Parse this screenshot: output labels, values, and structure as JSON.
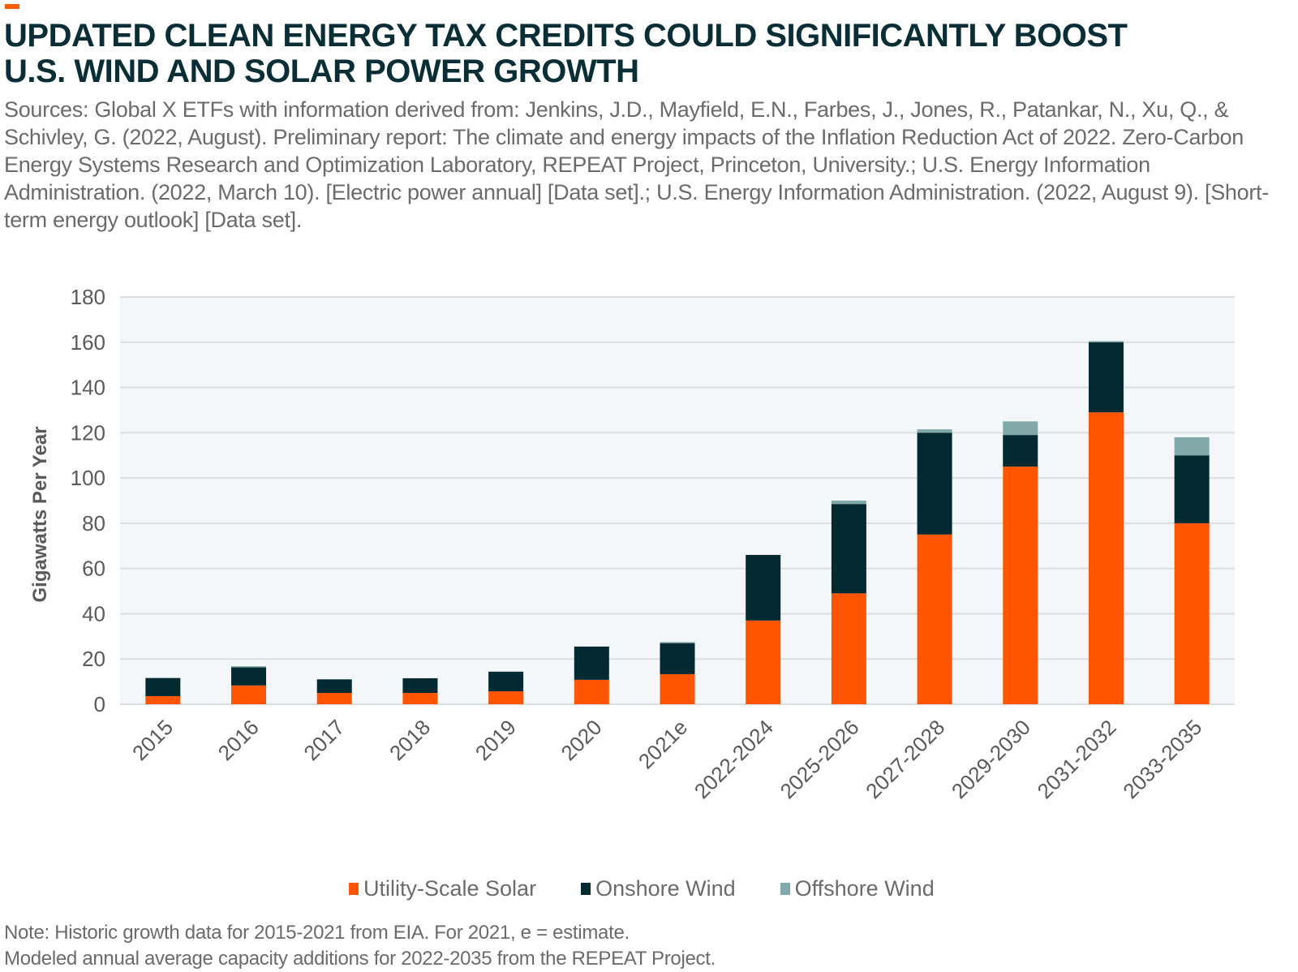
{
  "title_lines": [
    "UPDATED CLEAN ENERGY TAX CREDITS COULD SIGNIFICANTLY BOOST",
    "U.S. WIND AND SOLAR POWER GROWTH"
  ],
  "sources": "Sources: Global X ETFs with information derived from: Jenkins, J.D., Mayfield, E.N., Farbes, J., Jones, R., Patankar, N., Xu, Q., & Schivley, G. (2022, August). Preliminary report: The climate and energy impacts of the Inflation Reduction Act of 2022. Zero-Carbon Energy Systems Research and Optimization Laboratory, REPEAT Project, Princeton, University.; U.S. Energy Information Administration. (2022, March 10). [Electric power annual] [Data set].; U.S. Energy Information Administration. (2022, August 9). [Short-term energy outlook] [Data set].",
  "notes": [
    "Note: Historic growth data for 2015-2021 from EIA. For 2021, e = estimate.",
    "Modeled annual average capacity additions for 2022-2035 from the REPEAT Project."
  ],
  "colors": {
    "solar": "#ff5500",
    "onshore": "#032a31",
    "offshore": "#82a9a9",
    "accent": "#ff5a00"
  },
  "chart_data": {
    "type": "bar",
    "stacked": true,
    "title": "UPDATED CLEAN ENERGY TAX CREDITS COULD SIGNIFICANTLY BOOST U.S. WIND AND SOLAR POWER GROWTH",
    "xlabel": "",
    "ylabel": "Gigawatts Per Year",
    "ylim": [
      0,
      180
    ],
    "yticks": [
      0,
      20,
      40,
      60,
      80,
      100,
      120,
      140,
      160,
      180
    ],
    "grid": true,
    "legend_position": "bottom",
    "categories": [
      "2015",
      "2016",
      "2017",
      "2018",
      "2019",
      "2020",
      "2021e",
      "2022-2024",
      "2025-2026",
      "2027-2028",
      "2029-2030",
      "2031-2032",
      "2033-2035"
    ],
    "series": [
      {
        "name": "Utility-Scale Solar",
        "values": [
          3.6,
          8.3,
          5,
          5,
          5.7,
          10.8,
          13.3,
          37,
          49,
          75,
          105,
          129,
          80
        ]
      },
      {
        "name": "Onshore Wind",
        "values": [
          8,
          8,
          6,
          6.5,
          8.7,
          14.7,
          13.7,
          29,
          39.5,
          45,
          14,
          31,
          30
        ]
      },
      {
        "name": "Offshore Wind",
        "values": [
          0,
          0.5,
          0,
          0,
          0,
          0,
          0.5,
          0,
          1.5,
          1.5,
          6,
          0.5,
          8
        ]
      }
    ]
  }
}
